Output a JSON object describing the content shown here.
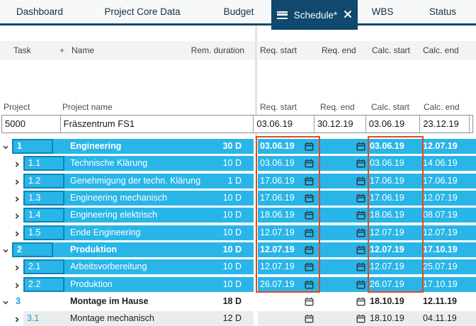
{
  "tabs": [
    {
      "label": "Dashboard"
    },
    {
      "label": "Project Core Data"
    },
    {
      "label": "Budget"
    },
    {
      "label": "Schedule*",
      "active": true
    },
    {
      "label": "WBS"
    },
    {
      "label": "Status"
    }
  ],
  "table": {
    "columns_left": {
      "task": "Task",
      "add": "+",
      "name": "Name",
      "rem_duration": "Rem. duration"
    },
    "columns_right": [
      "Req. start",
      "Req. end",
      "Calc. start",
      "Calc. end"
    ]
  },
  "project": {
    "labels": {
      "project": "Project",
      "name": "Project name",
      "req_start": "Req. start",
      "req_end": "Req. end",
      "calc_start": "Calc. start",
      "calc_end": "Calc. end"
    },
    "values": {
      "id": "5000",
      "name": "Fräszentrum FS1",
      "req_start": "03.06.19",
      "req_end": "30.12.19",
      "calc_start": "03.06.19",
      "calc_end": "23.12.19"
    }
  },
  "rows": [
    {
      "num": "1",
      "name": "Engineering",
      "dur": "30 D",
      "level": 1,
      "bold": true,
      "style": "selected",
      "req_start": "03.06.19",
      "calc_start": "03.06.19",
      "calc_end": "12.07.19"
    },
    {
      "num": "1.1",
      "name": "Technische Klärung",
      "dur": "10 D",
      "level": 2,
      "bold": false,
      "style": "selected",
      "req_start": "03.06.19",
      "calc_start": "03.06.19",
      "calc_end": "14.06.19"
    },
    {
      "num": "1.2",
      "name": "Genehmigung der techn. Klärung",
      "dur": "1 D",
      "level": 2,
      "bold": false,
      "style": "selected",
      "req_start": "17.06.19",
      "calc_start": "17.06.19",
      "calc_end": "17.06.19"
    },
    {
      "num": "1.3",
      "name": "Engineering mechanisch",
      "dur": "10 D",
      "level": 2,
      "bold": false,
      "style": "selected",
      "req_start": "17.06.19",
      "calc_start": "17.06.19",
      "calc_end": "12.07.19"
    },
    {
      "num": "1.4",
      "name": "Engineering elektrisch",
      "dur": "10 D",
      "level": 2,
      "bold": false,
      "style": "selected",
      "req_start": "18.06.19",
      "calc_start": "18.06.19",
      "calc_end": "08.07.19"
    },
    {
      "num": "1.5",
      "name": "Ende Engineering",
      "dur": "10 D",
      "level": 2,
      "bold": false,
      "style": "selected",
      "req_start": "12.07.19",
      "calc_start": "12.07.19",
      "calc_end": "12.07.19"
    },
    {
      "num": "2",
      "name": "Produktion",
      "dur": "10 D",
      "level": 1,
      "bold": true,
      "style": "selected",
      "req_start": "12.07.19",
      "calc_start": "12.07.19",
      "calc_end": "17.10.19"
    },
    {
      "num": "2.1",
      "name": "Arbeitsvorbereitung",
      "dur": "10 D",
      "level": 2,
      "bold": false,
      "style": "selected",
      "req_start": "12.07.19",
      "calc_start": "12.07.19",
      "calc_end": "25.07.19"
    },
    {
      "num": "2.2",
      "name": "Produktion",
      "dur": "10 D",
      "level": 2,
      "bold": false,
      "style": "selected",
      "req_start": "26.07.19",
      "calc_start": "26.07.19",
      "calc_end": "17.10.19"
    },
    {
      "num": "3",
      "name": "Montage im Hause",
      "dur": "18 D",
      "level": 1,
      "bold": true,
      "style": "plain",
      "req_start": "",
      "calc_start": "18.10.19",
      "calc_end": "12.11.19"
    },
    {
      "num": "3.1",
      "name": "Montage mechanisch",
      "dur": "12 D",
      "level": 2,
      "bold": false,
      "style": "alt",
      "req_start": "",
      "calc_start": "18.10.19",
      "calc_end": "04.11.19"
    }
  ],
  "colors": {
    "row_highlight": "#29b5e8",
    "tab_active": "#10486e",
    "attention_box": "#e2491b",
    "alt_row": "#ececec"
  }
}
